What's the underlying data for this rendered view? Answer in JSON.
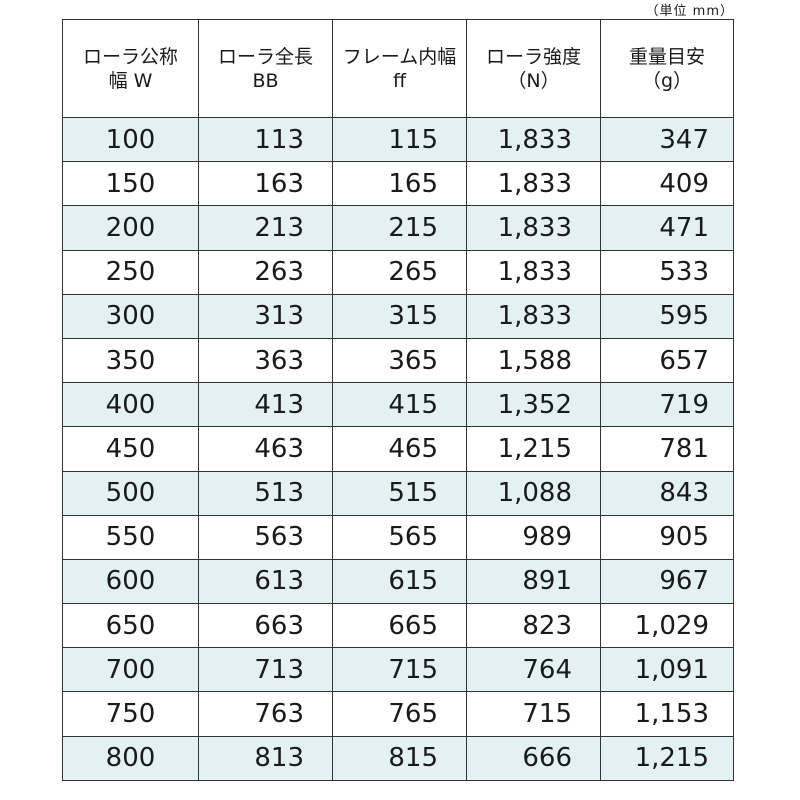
{
  "unit_note": "（単位 mm）",
  "headers": [
    {
      "line1": "ローラ公称",
      "line2": "幅 W"
    },
    {
      "line1": "ローラ全長",
      "line2": "BB"
    },
    {
      "line1": "フレーム内幅",
      "line2": "ff"
    },
    {
      "line1": "ローラ強度",
      "line2": "（N）"
    },
    {
      "line1": "重量目安",
      "line2": "（g）"
    }
  ],
  "rows": [
    [
      "100",
      "113",
      "115",
      "1,833",
      "347"
    ],
    [
      "150",
      "163",
      "165",
      "1,833",
      "409"
    ],
    [
      "200",
      "213",
      "215",
      "1,833",
      "471"
    ],
    [
      "250",
      "263",
      "265",
      "1,833",
      "533"
    ],
    [
      "300",
      "313",
      "315",
      "1,833",
      "595"
    ],
    [
      "350",
      "363",
      "365",
      "1,588",
      "657"
    ],
    [
      "400",
      "413",
      "415",
      "1,352",
      "719"
    ],
    [
      "450",
      "463",
      "465",
      "1,215",
      "781"
    ],
    [
      "500",
      "513",
      "515",
      "1,088",
      "843"
    ],
    [
      "550",
      "563",
      "565",
      "989",
      "905"
    ],
    [
      "600",
      "613",
      "615",
      "891",
      "967"
    ],
    [
      "650",
      "663",
      "665",
      "823",
      "1,029"
    ],
    [
      "700",
      "713",
      "715",
      "764",
      "1,091"
    ],
    [
      "750",
      "763",
      "765",
      "715",
      "1,153"
    ],
    [
      "800",
      "813",
      "815",
      "666",
      "1,215"
    ]
  ],
  "colors": {
    "shade_row": "#e4f1f3",
    "border": "#333333",
    "text": "#1a1a1a"
  }
}
